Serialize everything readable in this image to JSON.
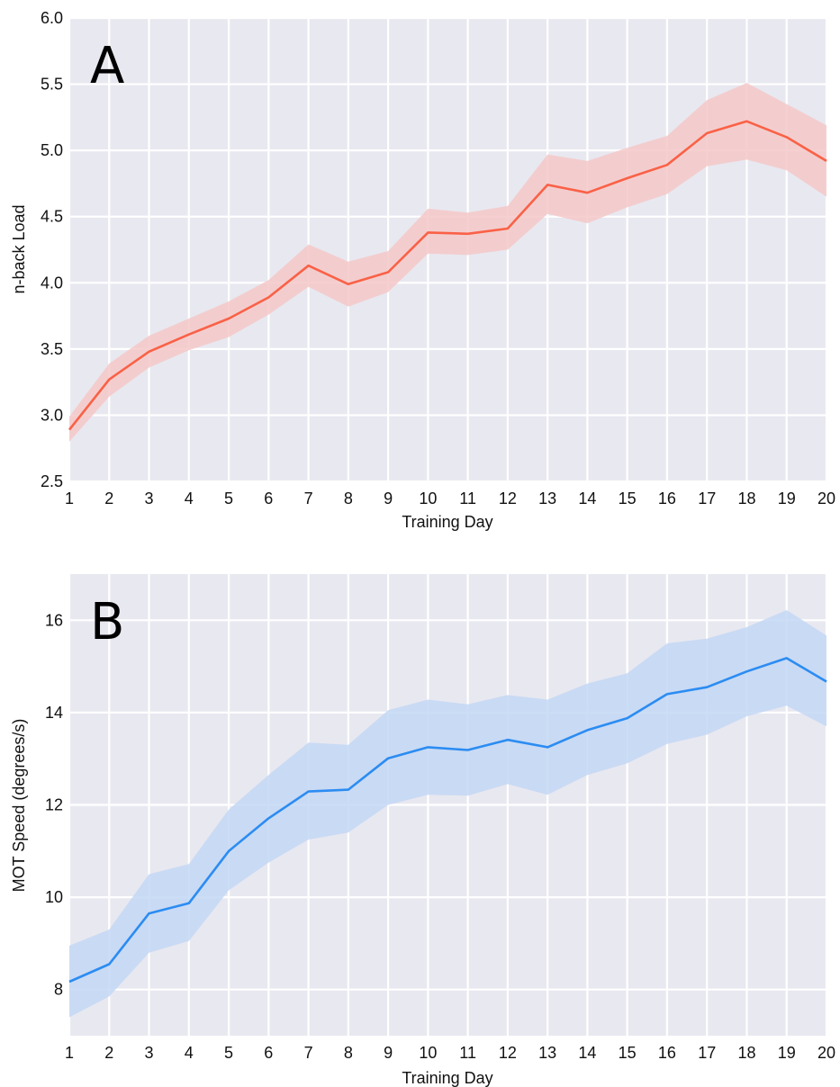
{
  "chart_data": [
    {
      "type": "line",
      "panel_label": "A",
      "xlabel": "Training Day",
      "ylabel": "n-back Load",
      "x": [
        1,
        2,
        3,
        4,
        5,
        6,
        7,
        8,
        9,
        10,
        11,
        12,
        13,
        14,
        15,
        16,
        17,
        18,
        19,
        20
      ],
      "xticks": [
        "1",
        "2",
        "3",
        "4",
        "5",
        "6",
        "7",
        "8",
        "9",
        "10",
        "11",
        "12",
        "13",
        "14",
        "15",
        "16",
        "17",
        "18",
        "19",
        "20"
      ],
      "xlim": [
        1,
        20
      ],
      "ylim": [
        2.5,
        6.0
      ],
      "yticks": [
        "2.5",
        "3.0",
        "3.5",
        "4.0",
        "4.5",
        "5.0",
        "5.5",
        "6.0"
      ],
      "grid": true,
      "series": [
        {
          "values": [
            2.89,
            3.27,
            3.48,
            3.61,
            3.73,
            3.89,
            4.13,
            3.99,
            4.08,
            4.38,
            4.37,
            4.41,
            4.74,
            4.68,
            4.79,
            4.89,
            5.13,
            5.22,
            5.1,
            4.92
          ],
          "upper": [
            2.99,
            3.39,
            3.6,
            3.73,
            3.86,
            4.02,
            4.29,
            4.16,
            4.24,
            4.56,
            4.53,
            4.58,
            4.97,
            4.92,
            5.02,
            5.11,
            5.38,
            5.51,
            5.35,
            5.19
          ],
          "lower": [
            2.8,
            3.14,
            3.36,
            3.49,
            3.59,
            3.76,
            3.97,
            3.82,
            3.93,
            4.22,
            4.21,
            4.25,
            4.52,
            4.45,
            4.57,
            4.67,
            4.88,
            4.93,
            4.85,
            4.65
          ],
          "color": "#fa6146",
          "band_color": "#f4c8c8"
        }
      ]
    },
    {
      "type": "line",
      "panel_label": "B",
      "xlabel": "Training Day",
      "ylabel": "MOT Speed (degrees/s)",
      "x": [
        1,
        2,
        3,
        4,
        5,
        6,
        7,
        8,
        9,
        10,
        11,
        12,
        13,
        14,
        15,
        16,
        17,
        18,
        19,
        20
      ],
      "xticks": [
        "1",
        "2",
        "3",
        "4",
        "5",
        "6",
        "7",
        "8",
        "9",
        "10",
        "11",
        "12",
        "13",
        "14",
        "15",
        "16",
        "17",
        "18",
        "19",
        "20"
      ],
      "xlim": [
        1,
        20
      ],
      "ylim": [
        7,
        17
      ],
      "yticks": [
        "8",
        "10",
        "12",
        "14",
        "16"
      ],
      "grid": true,
      "series": [
        {
          "values": [
            8.17,
            8.55,
            9.65,
            9.87,
            11.0,
            11.71,
            12.29,
            12.33,
            13.01,
            13.25,
            13.19,
            13.41,
            13.25,
            13.62,
            13.88,
            14.4,
            14.55,
            14.89,
            15.18,
            14.67
          ],
          "upper": [
            8.95,
            9.3,
            10.5,
            10.72,
            11.9,
            12.65,
            13.35,
            13.3,
            14.05,
            14.28,
            14.18,
            14.38,
            14.28,
            14.63,
            14.85,
            15.5,
            15.6,
            15.85,
            16.22,
            15.67
          ],
          "lower": [
            7.4,
            7.85,
            8.8,
            9.05,
            10.15,
            10.75,
            11.25,
            11.4,
            12.0,
            12.22,
            12.2,
            12.45,
            12.22,
            12.65,
            12.9,
            13.32,
            13.52,
            13.92,
            14.15,
            13.7
          ],
          "color": "#2b8cf2",
          "band_color": "#c3d7f4"
        }
      ]
    }
  ]
}
